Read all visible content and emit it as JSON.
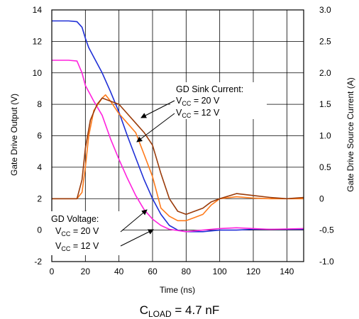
{
  "chart_data": {
    "type": "line",
    "xlabel": "Time (ns)",
    "ylabel_left": "Gate Drive Output (V)",
    "ylabel_right": "Gate Drive Source Current (A)",
    "xlim": [
      0,
      150
    ],
    "ylim_left": [
      -2,
      14
    ],
    "ylim_right": [
      -1.0,
      3.0
    ],
    "x_ticks": [
      "0",
      "20",
      "40",
      "60",
      "80",
      "100",
      "120",
      "140"
    ],
    "y_ticks_left": [
      "-2",
      "0",
      "2",
      "4",
      "6",
      "8",
      "10",
      "12",
      "14"
    ],
    "y_ticks_right": [
      "-1.0",
      "-0.5",
      "0",
      "0.5",
      "1.0",
      "1.5",
      "2.0",
      "2.5",
      "3.0"
    ],
    "grid": true,
    "caption": {
      "prefix": "C",
      "sub": "LOAD",
      "suffix": " = 4.7 nF"
    },
    "annotations": {
      "sink_title": "GD Sink Current:",
      "sink_20": {
        "prefix": "V",
        "sub": "CC",
        "suffix": " = 20 V"
      },
      "sink_12": {
        "prefix": "V",
        "sub": "CC",
        "suffix": " = 12 V"
      },
      "volt_title": "GD Voltage:",
      "volt_20": {
        "prefix": "V",
        "sub": "CC",
        "suffix": " = 20 V"
      },
      "volt_12": {
        "prefix": "V",
        "sub": "CC",
        "suffix": " = 12 V"
      }
    },
    "series": [
      {
        "color": "#1f2fd6",
        "axis": "left",
        "points": [
          [
            0,
            13.3
          ],
          [
            10,
            13.3
          ],
          [
            15,
            13.25
          ],
          [
            18,
            12.9
          ],
          [
            20,
            12.2
          ],
          [
            22,
            11.6
          ],
          [
            25,
            11.0
          ],
          [
            30,
            10.0
          ],
          [
            35,
            8.8
          ],
          [
            40,
            7.5
          ],
          [
            45,
            6.0
          ],
          [
            50,
            4.6
          ],
          [
            55,
            3.2
          ],
          [
            60,
            2.0
          ],
          [
            65,
            1.0
          ],
          [
            70,
            0.3
          ],
          [
            75,
            0.0
          ],
          [
            80,
            -0.1
          ],
          [
            90,
            -0.1
          ],
          [
            100,
            0.0
          ],
          [
            110,
            0.0
          ],
          [
            120,
            0.05
          ],
          [
            130,
            0.05
          ],
          [
            150,
            0.05
          ]
        ]
      },
      {
        "color": "#ff22dd",
        "axis": "left",
        "points": [
          [
            0,
            10.8
          ],
          [
            10,
            10.8
          ],
          [
            15,
            10.75
          ],
          [
            18,
            10.0
          ],
          [
            20,
            9.2
          ],
          [
            25,
            8.2
          ],
          [
            30,
            7.3
          ],
          [
            35,
            5.8
          ],
          [
            40,
            4.5
          ],
          [
            45,
            3.3
          ],
          [
            50,
            2.2
          ],
          [
            55,
            1.3
          ],
          [
            60,
            0.7
          ],
          [
            65,
            0.3
          ],
          [
            70,
            0.05
          ],
          [
            80,
            -0.1
          ],
          [
            90,
            0.0
          ],
          [
            100,
            0.1
          ],
          [
            110,
            0.15
          ],
          [
            120,
            0.1
          ],
          [
            130,
            0.05
          ],
          [
            150,
            0.1
          ]
        ]
      },
      {
        "color": "#ff7a1a",
        "axis": "right",
        "points": [
          [
            0,
            0.0
          ],
          [
            15,
            0.0
          ],
          [
            18,
            0.1
          ],
          [
            20,
            0.5
          ],
          [
            22,
            1.0
          ],
          [
            25,
            1.4
          ],
          [
            30,
            1.6
          ],
          [
            32,
            1.65
          ],
          [
            35,
            1.55
          ],
          [
            40,
            1.35
          ],
          [
            45,
            1.2
          ],
          [
            50,
            1.05
          ],
          [
            55,
            0.7
          ],
          [
            60,
            0.35
          ],
          [
            65,
            -0.15
          ],
          [
            70,
            -0.28
          ],
          [
            75,
            -0.35
          ],
          [
            80,
            -0.35
          ],
          [
            85,
            -0.3
          ],
          [
            90,
            -0.25
          ],
          [
            95,
            -0.1
          ],
          [
            100,
            0.0
          ],
          [
            110,
            0.03
          ],
          [
            120,
            0.01
          ],
          [
            130,
            0.0
          ],
          [
            140,
            0.0
          ],
          [
            150,
            0.0
          ]
        ]
      },
      {
        "color": "#9a3b0a",
        "axis": "right",
        "points": [
          [
            0,
            0.0
          ],
          [
            15,
            0.0
          ],
          [
            18,
            0.3
          ],
          [
            20,
            0.8
          ],
          [
            23,
            1.25
          ],
          [
            27,
            1.5
          ],
          [
            30,
            1.6
          ],
          [
            35,
            1.55
          ],
          [
            40,
            1.5
          ],
          [
            45,
            1.35
          ],
          [
            50,
            1.2
          ],
          [
            55,
            1.05
          ],
          [
            60,
            0.85
          ],
          [
            65,
            0.4
          ],
          [
            70,
            0.0
          ],
          [
            75,
            -0.2
          ],
          [
            80,
            -0.25
          ],
          [
            85,
            -0.2
          ],
          [
            90,
            -0.15
          ],
          [
            95,
            -0.05
          ],
          [
            100,
            0.0
          ],
          [
            110,
            0.08
          ],
          [
            120,
            0.05
          ],
          [
            130,
            0.02
          ],
          [
            140,
            0.0
          ],
          [
            150,
            0.02
          ]
        ]
      }
    ]
  }
}
